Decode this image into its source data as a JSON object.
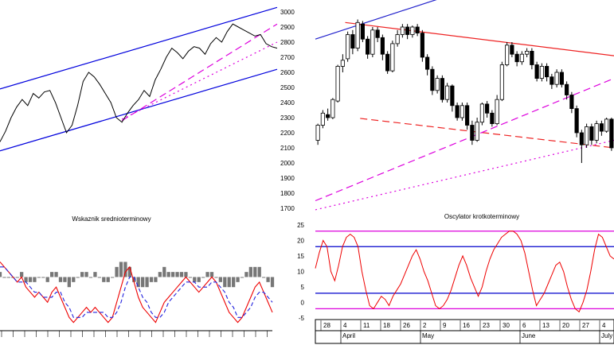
{
  "chart_data": [
    {
      "type": "line",
      "panel": "long-term-price",
      "y_axis_labels": [
        "3000",
        "2900",
        "2800",
        "2700",
        "2600",
        "2500",
        "2400",
        "2300",
        "2200",
        "2100",
        "2000",
        "1900",
        "1800",
        "1700"
      ],
      "ylim": [
        1650,
        3020
      ],
      "x_index_range": [
        0,
        100
      ],
      "series": [
        {
          "role": "price",
          "color": "#000000",
          "points": [
            [
              0,
              2140
            ],
            [
              2,
              2210
            ],
            [
              4,
              2300
            ],
            [
              6,
              2370
            ],
            [
              8,
              2420
            ],
            [
              10,
              2380
            ],
            [
              12,
              2460
            ],
            [
              14,
              2430
            ],
            [
              16,
              2470
            ],
            [
              18,
              2480
            ],
            [
              20,
              2400
            ],
            [
              22,
              2300
            ],
            [
              24,
              2200
            ],
            [
              26,
              2250
            ],
            [
              28,
              2380
            ],
            [
              30,
              2540
            ],
            [
              32,
              2600
            ],
            [
              34,
              2570
            ],
            [
              36,
              2520
            ],
            [
              38,
              2460
            ],
            [
              40,
              2400
            ],
            [
              42,
              2300
            ],
            [
              44,
              2270
            ],
            [
              46,
              2330
            ],
            [
              48,
              2380
            ],
            [
              50,
              2420
            ],
            [
              52,
              2480
            ],
            [
              54,
              2440
            ],
            [
              56,
              2550
            ],
            [
              58,
              2620
            ],
            [
              60,
              2700
            ],
            [
              62,
              2760
            ],
            [
              64,
              2730
            ],
            [
              66,
              2690
            ],
            [
              68,
              2740
            ],
            [
              70,
              2770
            ],
            [
              72,
              2760
            ],
            [
              74,
              2720
            ],
            [
              76,
              2790
            ],
            [
              78,
              2830
            ],
            [
              80,
              2800
            ],
            [
              82,
              2870
            ],
            [
              84,
              2920
            ],
            [
              86,
              2900
            ],
            [
              88,
              2880
            ],
            [
              90,
              2860
            ],
            [
              92,
              2840
            ],
            [
              94,
              2850
            ],
            [
              96,
              2790
            ],
            [
              98,
              2770
            ],
            [
              100,
              2760
            ]
          ]
        }
      ],
      "trendlines": [
        {
          "style": "solid",
          "color": "#0000dd",
          "from": [
            0,
            2490
          ],
          "to": [
            100,
            3030
          ]
        },
        {
          "style": "solid",
          "color": "#0000dd",
          "from": [
            0,
            2080
          ],
          "to": [
            100,
            2620
          ]
        },
        {
          "style": "dashed",
          "color": "#dd00dd",
          "from": [
            44,
            2280
          ],
          "to": [
            100,
            2920
          ]
        },
        {
          "style": "dotted",
          "color": "#dd00dd",
          "from": [
            44,
            2290
          ],
          "to": [
            100,
            2800
          ]
        }
      ]
    },
    {
      "type": "candlestick",
      "panel": "short-term-price",
      "date_ticks": [
        "28",
        "4",
        "11",
        "18",
        "26",
        "2",
        "9",
        "16",
        "23",
        "30",
        "6",
        "13",
        "20",
        "27",
        "4"
      ],
      "month_labels": [
        "April",
        "May",
        "June",
        "July"
      ],
      "ylim": [
        1650,
        3020
      ],
      "candles": [
        [
          2150,
          2250,
          2120,
          2260
        ],
        [
          2250,
          2330,
          2230,
          2350
        ],
        [
          2320,
          2300,
          2280,
          2360
        ],
        [
          2300,
          2420,
          2290,
          2430
        ],
        [
          2410,
          2640,
          2400,
          2650
        ],
        [
          2640,
          2680,
          2600,
          2720
        ],
        [
          2690,
          2850,
          2670,
          2870
        ],
        [
          2850,
          2760,
          2720,
          2880
        ],
        [
          2760,
          2930,
          2740,
          2950
        ],
        [
          2920,
          2820,
          2800,
          2940
        ],
        [
          2820,
          2720,
          2690,
          2840
        ],
        [
          2720,
          2880,
          2700,
          2900
        ],
        [
          2880,
          2830,
          2800,
          2900
        ],
        [
          2830,
          2720,
          2680,
          2850
        ],
        [
          2720,
          2610,
          2590,
          2740
        ],
        [
          2610,
          2790,
          2600,
          2810
        ],
        [
          2790,
          2850,
          2770,
          2880
        ],
        [
          2850,
          2900,
          2830,
          2920
        ],
        [
          2900,
          2850,
          2820,
          2920
        ],
        [
          2850,
          2900,
          2830,
          2910
        ],
        [
          2900,
          2860,
          2840,
          2920
        ],
        [
          2860,
          2700,
          2670,
          2880
        ],
        [
          2700,
          2620,
          2580,
          2720
        ],
        [
          2620,
          2480,
          2450,
          2640
        ],
        [
          2480,
          2560,
          2460,
          2580
        ],
        [
          2560,
          2420,
          2400,
          2580
        ],
        [
          2420,
          2510,
          2400,
          2530
        ],
        [
          2510,
          2380,
          2340,
          2520
        ],
        [
          2380,
          2300,
          2280,
          2400
        ],
        [
          2300,
          2380,
          2280,
          2400
        ],
        [
          2380,
          2250,
          2220,
          2400
        ],
        [
          2250,
          2150,
          2120,
          2280
        ],
        [
          2150,
          2270,
          2140,
          2300
        ],
        [
          2270,
          2390,
          2250,
          2400
        ],
        [
          2390,
          2330,
          2300,
          2410
        ],
        [
          2330,
          2260,
          2240,
          2350
        ],
        [
          2260,
          2420,
          2250,
          2450
        ],
        [
          2420,
          2650,
          2410,
          2670
        ],
        [
          2650,
          2780,
          2640,
          2800
        ],
        [
          2780,
          2720,
          2700,
          2800
        ],
        [
          2720,
          2670,
          2640,
          2740
        ],
        [
          2670,
          2720,
          2650,
          2740
        ],
        [
          2720,
          2740,
          2700,
          2760
        ],
        [
          2740,
          2650,
          2620,
          2760
        ],
        [
          2650,
          2560,
          2540,
          2670
        ],
        [
          2560,
          2640,
          2540,
          2660
        ],
        [
          2640,
          2570,
          2540,
          2660
        ],
        [
          2570,
          2520,
          2490,
          2590
        ],
        [
          2520,
          2600,
          2500,
          2620
        ],
        [
          2600,
          2520,
          2500,
          2620
        ],
        [
          2520,
          2450,
          2420,
          2540
        ],
        [
          2450,
          2360,
          2330,
          2470
        ],
        [
          2360,
          2200,
          2170,
          2380
        ],
        [
          2200,
          2120,
          2000,
          2220
        ],
        [
          2120,
          2240,
          2100,
          2260
        ],
        [
          2240,
          2150,
          2120,
          2260
        ],
        [
          2150,
          2260,
          2130,
          2280
        ],
        [
          2260,
          2210,
          2180,
          2280
        ],
        [
          2210,
          2290,
          2200,
          2300
        ],
        [
          2290,
          2100,
          2080,
          2300
        ]
      ],
      "trendlines": [
        {
          "style": "solid",
          "color": "#2222cc",
          "from": [
            0,
            2820
          ],
          "to": [
            45,
            3110
          ]
        },
        {
          "style": "solid",
          "color": "#ee2222",
          "from": [
            10,
            2930
          ],
          "to": [
            100,
            2710
          ]
        },
        {
          "style": "dashed",
          "color": "#ee2222",
          "from": [
            15,
            2295
          ],
          "to": [
            100,
            2100
          ]
        },
        {
          "style": "dashed",
          "color": "#dd00dd",
          "from": [
            0,
            1750
          ],
          "to": [
            100,
            2560
          ]
        },
        {
          "style": "dotted",
          "color": "#dd00dd",
          "from": [
            0,
            1690
          ],
          "to": [
            100,
            2150
          ]
        }
      ]
    },
    {
      "type": "line",
      "panel": "medium-term-indicator",
      "title": "Wskaznik srednioterminowy",
      "ylim": [
        -10,
        10
      ],
      "series": [
        {
          "role": "indicator-line",
          "color": "#ee0000",
          "values": [
            3,
            2,
            1,
            0,
            -1,
            0,
            -2,
            -3,
            -4,
            -3,
            -4,
            -5,
            -3,
            -2,
            -4,
            -6,
            -8,
            -9,
            -8,
            -7,
            -6,
            -7,
            -6,
            -7,
            -8,
            -9,
            -8,
            -5,
            -2,
            1,
            2,
            -1,
            -4,
            -6,
            -7,
            -8,
            -9,
            -7,
            -5,
            -4,
            -3,
            -2,
            -1,
            0,
            -1,
            -2,
            -3,
            -2,
            -1,
            0,
            -1,
            -3,
            -5,
            -7,
            -8,
            -9,
            -8,
            -6,
            -4,
            -2,
            -1,
            -3,
            -5,
            -7
          ]
        },
        {
          "role": "signal-line",
          "color": "#2222dd",
          "values": [
            2,
            2,
            1,
            0,
            -1,
            -1,
            -1,
            -2,
            -3,
            -3,
            -4,
            -4,
            -4,
            -3,
            -3,
            -5,
            -6,
            -8,
            -8,
            -8,
            -7,
            -7,
            -7,
            -7,
            -7,
            -8,
            -8,
            -7,
            -5,
            -2,
            0,
            0,
            -2,
            -4,
            -5,
            -7,
            -8,
            -8,
            -7,
            -5,
            -4,
            -3,
            -2,
            -1,
            -1,
            -1,
            -2,
            -2,
            -2,
            -1,
            -1,
            -2,
            -3,
            -5,
            -6,
            -8,
            -8,
            -7,
            -6,
            -4,
            -3,
            -3,
            -4,
            -5
          ]
        },
        {
          "role": "histogram",
          "color": "#777777",
          "values": [
            1,
            0,
            0,
            0,
            0,
            1,
            -1,
            -1,
            -1,
            0,
            0,
            -1,
            1,
            1,
            -1,
            -1,
            -2,
            -1,
            0,
            1,
            1,
            0,
            1,
            0,
            -1,
            -1,
            0,
            2,
            3,
            3,
            2,
            -1,
            -2,
            -2,
            -2,
            -1,
            -1,
            1,
            2,
            1,
            1,
            1,
            1,
            1,
            0,
            -1,
            -1,
            0,
            1,
            1,
            0,
            -1,
            -2,
            -2,
            -2,
            -1,
            0,
            1,
            2,
            2,
            2,
            0,
            -1,
            -2
          ]
        }
      ]
    },
    {
      "type": "line",
      "panel": "short-term-oscillator",
      "title": "Oscylator krotkoterminowy",
      "y_axis_labels": [
        "25",
        "20",
        "15",
        "10",
        "5",
        "0",
        "-5"
      ],
      "ylim": [
        -6,
        26
      ],
      "levels": [
        {
          "value": 23,
          "color": "#dd00dd"
        },
        {
          "value": 18,
          "color": "#0000cc"
        },
        {
          "value": 3,
          "color": "#0000cc"
        },
        {
          "value": -2,
          "color": "#dd00dd"
        }
      ],
      "series": [
        {
          "role": "oscillator",
          "color": "#ee0000",
          "values": [
            11,
            16,
            20,
            18,
            10,
            7,
            12,
            18,
            21,
            22,
            21,
            18,
            10,
            4,
            -1,
            -2,
            0,
            2,
            1,
            -1,
            2,
            4,
            6,
            9,
            12,
            15,
            17,
            14,
            10,
            7,
            3,
            -1,
            -2,
            -1,
            1,
            4,
            8,
            12,
            15,
            12,
            8,
            5,
            2,
            5,
            10,
            14,
            17,
            19,
            21,
            22,
            23,
            23,
            22,
            20,
            16,
            10,
            4,
            -1,
            1,
            3,
            6,
            9,
            12,
            13,
            10,
            5,
            1,
            -2,
            -3,
            0,
            4,
            10,
            17,
            22,
            21,
            18,
            15,
            14
          ]
        }
      ]
    }
  ]
}
